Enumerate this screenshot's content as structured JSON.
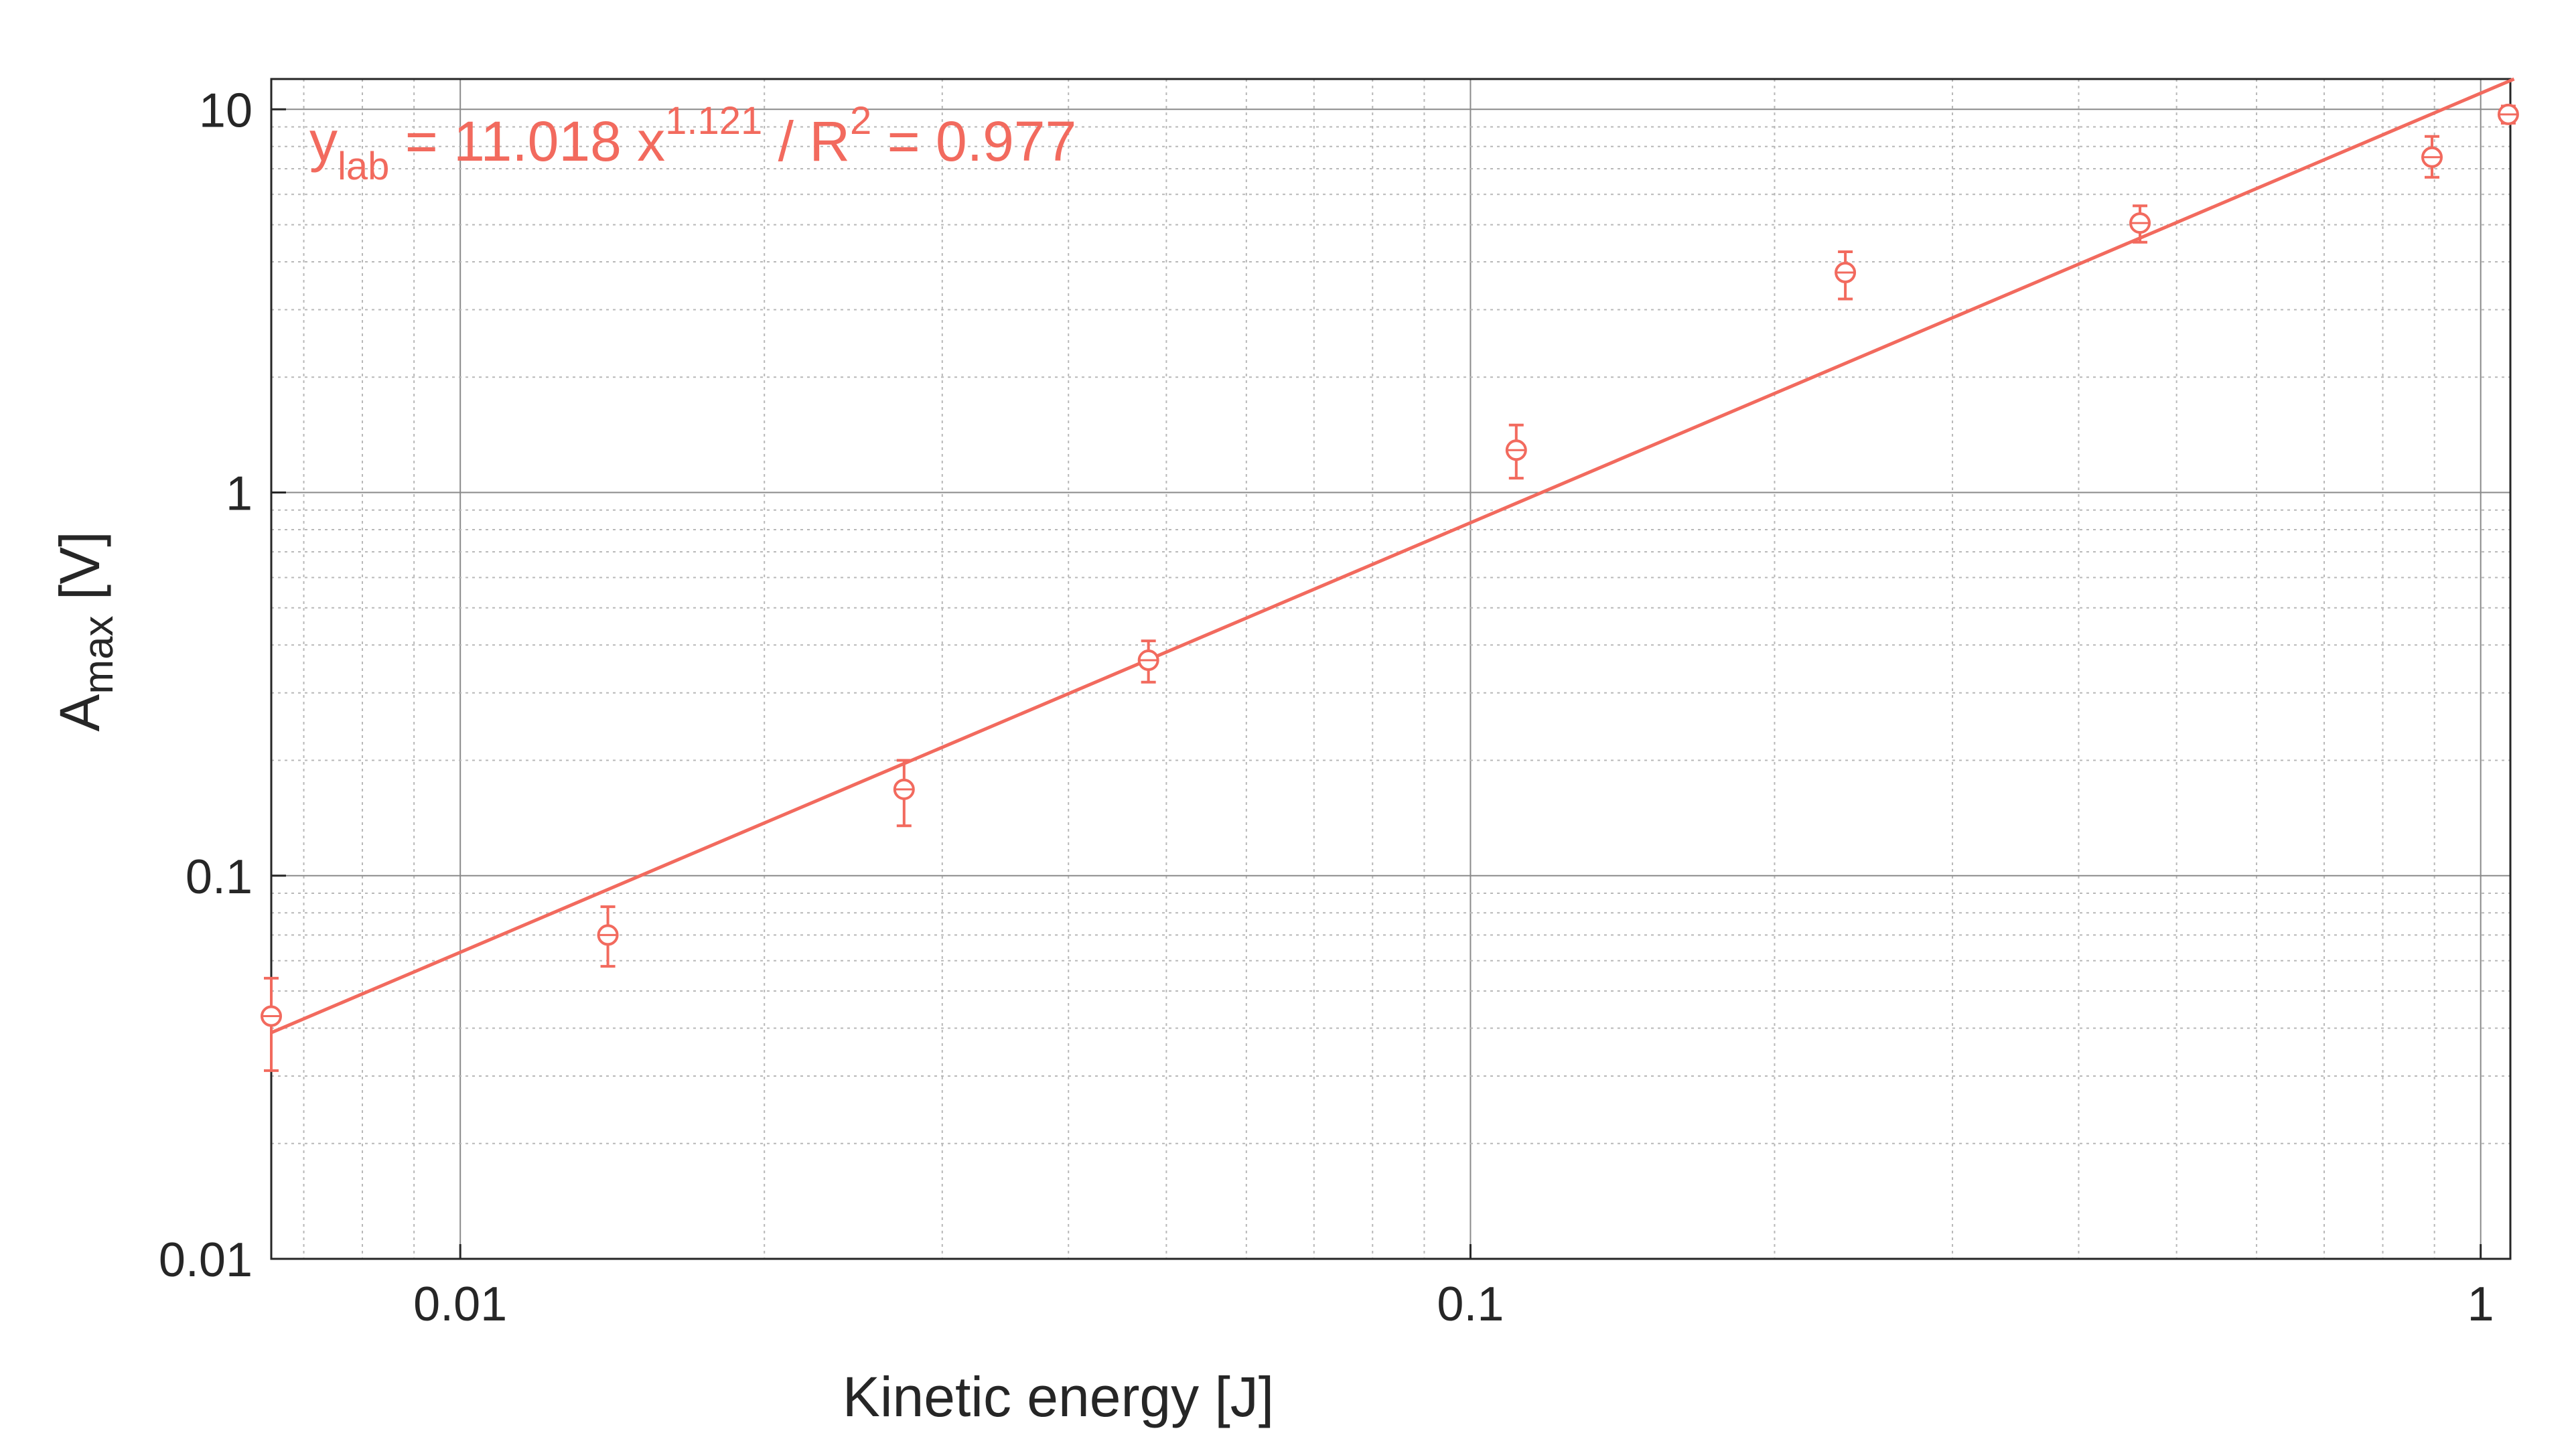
{
  "chart_data": {
    "type": "scatter",
    "xscale": "log",
    "yscale": "log",
    "xlabel": "Kinetic energy [J]",
    "ylabel": {
      "main": "A",
      "sub": "max",
      "unit": " [V]"
    },
    "xlim": [
      0.0065,
      1.07
    ],
    "ylim": [
      0.01,
      12
    ],
    "x_ticks": [
      {
        "v": 0.01,
        "label": "0.01"
      },
      {
        "v": 0.1,
        "label": "0.1"
      },
      {
        "v": 1,
        "label": "1"
      }
    ],
    "y_ticks": [
      {
        "v": 0.01,
        "label": "0.01"
      },
      {
        "v": 0.1,
        "label": "0.1"
      },
      {
        "v": 1,
        "label": "1"
      },
      {
        "v": 10,
        "label": "10"
      }
    ],
    "grid": true,
    "color": "#f26a5e",
    "series": [
      {
        "points": [
          {
            "x": 0.0065,
            "y": 0.043,
            "lo": 0.031,
            "hi": 0.054
          },
          {
            "x": 0.014,
            "y": 0.07,
            "lo": 0.058,
            "hi": 0.083
          },
          {
            "x": 0.0275,
            "y": 0.168,
            "lo": 0.135,
            "hi": 0.2
          },
          {
            "x": 0.048,
            "y": 0.365,
            "lo": 0.32,
            "hi": 0.41
          },
          {
            "x": 0.111,
            "y": 1.29,
            "lo": 1.09,
            "hi": 1.5
          },
          {
            "x": 0.235,
            "y": 3.75,
            "lo": 3.2,
            "hi": 4.25
          },
          {
            "x": 0.46,
            "y": 5.05,
            "lo": 4.5,
            "hi": 5.6
          },
          {
            "x": 0.895,
            "y": 7.5,
            "lo": 6.65,
            "hi": 8.5
          },
          {
            "x": 1.065,
            "y": 9.7,
            "lo": 9.2,
            "hi": 10.2
          }
        ]
      }
    ],
    "fit": {
      "a": 11.018,
      "b": 1.121
    },
    "annotation": {
      "y": "y",
      "sub": "lab",
      "mid": " = 11.018 x",
      "exp": "1.121",
      "tail": " / R",
      "exp2": "2",
      "end": " = 0.977"
    }
  }
}
